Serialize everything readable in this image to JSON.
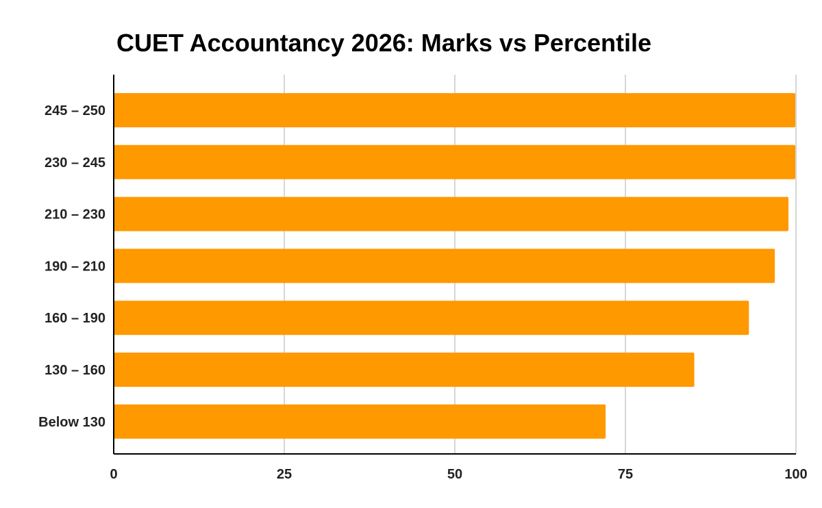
{
  "colors": {
    "bar": "#ff9900",
    "gridline": "#c8c8c8",
    "axis": "#000000",
    "text": "#222222"
  },
  "chart_data": {
    "type": "bar",
    "orientation": "horizontal",
    "title": "CUET Accountancy 2026: Marks vs Percentile",
    "xlabel": "",
    "ylabel": "",
    "categories": [
      "245 – 250",
      "230 – 245",
      "210 – 230",
      "190 – 210",
      "160 – 190",
      "130 – 160",
      "Below 130"
    ],
    "values": [
      99.9,
      99.9,
      98.9,
      96.9,
      93.1,
      85.1,
      72.1
    ],
    "xlim": [
      0,
      100
    ],
    "xticks": [
      0,
      25,
      50,
      75,
      100
    ],
    "xtick_labels": [
      "0",
      "25",
      "50",
      "75",
      "100"
    ],
    "grid": true,
    "legend": "none"
  }
}
